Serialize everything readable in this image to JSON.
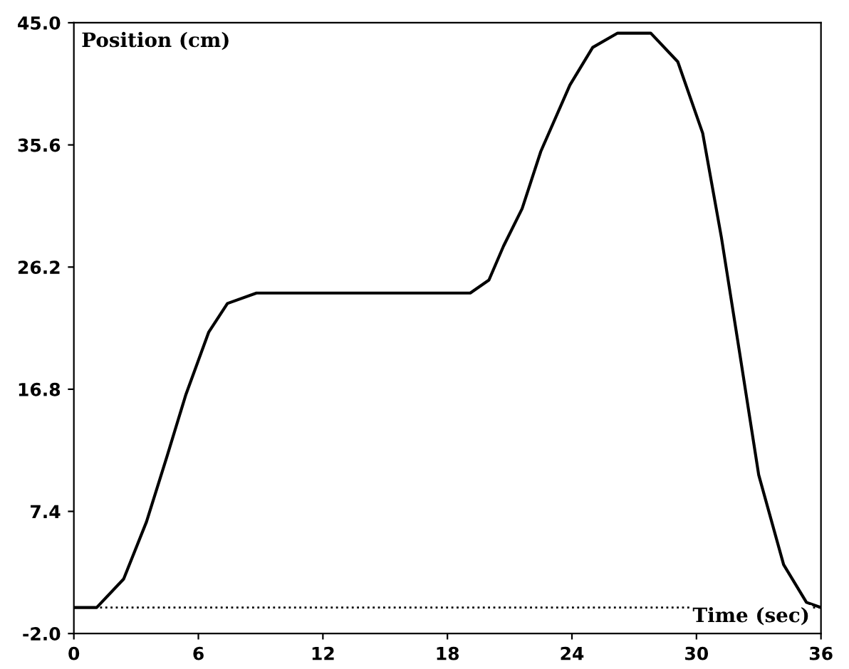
{
  "chart_data": {
    "type": "line",
    "xlabel": "Time (sec)",
    "ylabel": "Position (cm)",
    "x": [
      0,
      1.1,
      2.4,
      3.5,
      4.5,
      5.4,
      6.5,
      7.4,
      8.8,
      12,
      16,
      19.1,
      20.0,
      20.7,
      21.6,
      22.5,
      23.9,
      25.0,
      26.2,
      27.8,
      29.1,
      30.3,
      31.2,
      32.1,
      33.0,
      34.2,
      35.3,
      36
    ],
    "series": [
      {
        "color": "#000000",
        "values": [
          0,
          0,
          2.2,
          6.6,
          11.7,
          16.4,
          21.2,
          23.4,
          24.2,
          24.2,
          24.2,
          24.2,
          25.2,
          27.8,
          30.7,
          35.1,
          40.2,
          43.1,
          44.2,
          44.2,
          42.0,
          36.5,
          28.5,
          19.4,
          10.2,
          3.3,
          0.4,
          0
        ]
      }
    ],
    "xlim": [
      0,
      36
    ],
    "xticks": [
      0,
      6,
      12,
      18,
      24,
      30,
      36
    ],
    "ylim": [
      -2.0,
      45.0
    ],
    "yticks": [
      {
        "value": -2.0,
        "label": "-2.0"
      },
      7.4,
      16.8,
      26.2,
      35.6,
      {
        "value": 45.0,
        "label": "45.0"
      }
    ],
    "ref_lines": [
      {
        "axis": "y",
        "value": 0,
        "color": "#000000",
        "line_style": "dotted"
      }
    ],
    "grid": false,
    "legend": false,
    "marker": "none",
    "line_style": "solid"
  }
}
